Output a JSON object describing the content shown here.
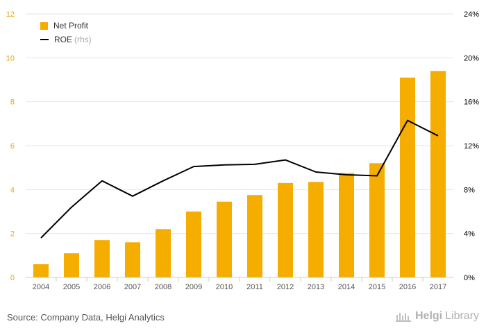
{
  "chart_data": {
    "type": "bar",
    "categories": [
      "2004",
      "2005",
      "2006",
      "2007",
      "2008",
      "2009",
      "2010",
      "2011",
      "2012",
      "2013",
      "2014",
      "2015",
      "2016",
      "2017"
    ],
    "series": [
      {
        "name": "Net Profit",
        "type": "bar",
        "axis": "left",
        "values": [
          0.6,
          1.1,
          1.7,
          1.6,
          2.2,
          3.0,
          3.45,
          3.75,
          4.3,
          4.35,
          4.75,
          5.2,
          9.1,
          9.4
        ]
      },
      {
        "name": "ROE",
        "type": "line",
        "axis": "right",
        "values": [
          3.6,
          6.4,
          8.8,
          7.4,
          8.8,
          10.1,
          10.25,
          10.3,
          10.7,
          9.6,
          9.35,
          9.25,
          14.3,
          12.9
        ]
      }
    ],
    "left_axis": {
      "ticks": [
        "0",
        "2",
        "4",
        "6",
        "8",
        "10",
        "12"
      ],
      "range": [
        0,
        12
      ]
    },
    "right_axis": {
      "ticks": [
        "0%",
        "4%",
        "8%",
        "12%",
        "16%",
        "20%",
        "24%"
      ],
      "range": [
        0,
        24
      ]
    },
    "grid": true,
    "legend_position": "top-left",
    "legend_rhs_note": "(rhs)",
    "colors": {
      "bar": "#F5AD00",
      "line": "#000000",
      "left_tick": "#E6A800",
      "grid": "#e6e6e6"
    }
  },
  "footer": {
    "source": "Source: Company Data, Helgi Analytics",
    "brand_part1": "Helgi",
    "brand_part2": "Library"
  }
}
